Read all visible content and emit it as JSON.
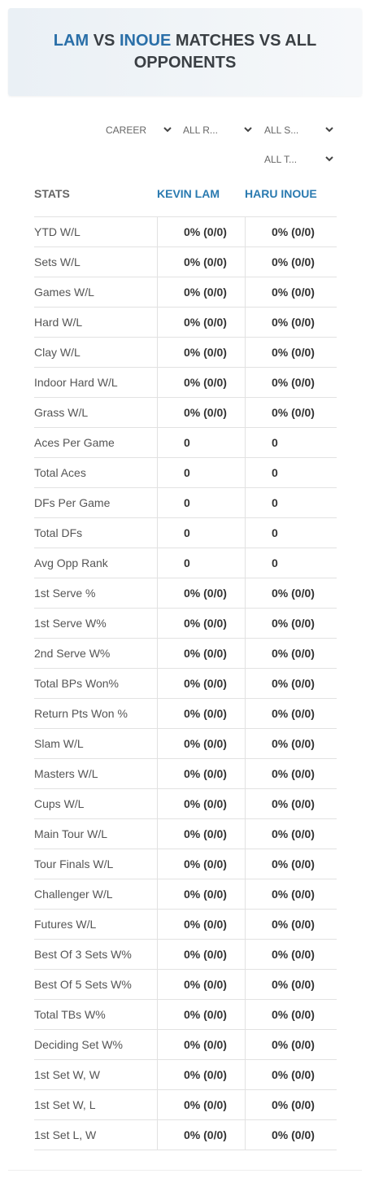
{
  "header": {
    "title": {
      "name1": "LAM",
      "vs": "VS",
      "name2": "INOUE",
      "rest": "MATCHES VS ALL OPPONENTS"
    }
  },
  "filters": [
    "CAREER",
    "ALL R...",
    "ALL S...",
    "ALL T..."
  ],
  "table": {
    "columns": [
      "STATS",
      "KEVIN LAM",
      "HARU INOUE"
    ],
    "rows": [
      [
        "YTD W/L",
        "0% (0/0)",
        "0% (0/0)"
      ],
      [
        "Sets W/L",
        "0% (0/0)",
        "0% (0/0)"
      ],
      [
        "Games W/L",
        "0% (0/0)",
        "0% (0/0)"
      ],
      [
        "Hard W/L",
        "0% (0/0)",
        "0% (0/0)"
      ],
      [
        "Clay W/L",
        "0% (0/0)",
        "0% (0/0)"
      ],
      [
        "Indoor Hard W/L",
        "0% (0/0)",
        "0% (0/0)"
      ],
      [
        "Grass W/L",
        "0% (0/0)",
        "0% (0/0)"
      ],
      [
        "Aces Per Game",
        "0",
        "0"
      ],
      [
        "Total Aces",
        "0",
        "0"
      ],
      [
        "DFs Per Game",
        "0",
        "0"
      ],
      [
        "Total DFs",
        "0",
        "0"
      ],
      [
        "Avg Opp Rank",
        "0",
        "0"
      ],
      [
        "1st Serve %",
        "0% (0/0)",
        "0% (0/0)"
      ],
      [
        "1st Serve W%",
        "0% (0/0)",
        "0% (0/0)"
      ],
      [
        "2nd Serve W%",
        "0% (0/0)",
        "0% (0/0)"
      ],
      [
        "Total BPs Won%",
        "0% (0/0)",
        "0% (0/0)"
      ],
      [
        "Return Pts Won %",
        "0% (0/0)",
        "0% (0/0)"
      ],
      [
        "Slam W/L",
        "0% (0/0)",
        "0% (0/0)"
      ],
      [
        "Masters W/L",
        "0% (0/0)",
        "0% (0/0)"
      ],
      [
        "Cups W/L",
        "0% (0/0)",
        "0% (0/0)"
      ],
      [
        "Main Tour W/L",
        "0% (0/0)",
        "0% (0/0)"
      ],
      [
        "Tour Finals W/L",
        "0% (0/0)",
        "0% (0/0)"
      ],
      [
        "Challenger W/L",
        "0% (0/0)",
        "0% (0/0)"
      ],
      [
        "Futures W/L",
        "0% (0/0)",
        "0% (0/0)"
      ],
      [
        "Best Of 3 Sets W%",
        "0% (0/0)",
        "0% (0/0)"
      ],
      [
        "Best Of 5 Sets W%",
        "0% (0/0)",
        "0% (0/0)"
      ],
      [
        "Total TBs W%",
        "0% (0/0)",
        "0% (0/0)"
      ],
      [
        "Deciding Set W%",
        "0% (0/0)",
        "0% (0/0)"
      ],
      [
        "1st Set W, W",
        "0% (0/0)",
        "0% (0/0)"
      ],
      [
        "1st Set W, L",
        "0% (0/0)",
        "0% (0/0)"
      ],
      [
        "1st Set L, W",
        "0% (0/0)",
        "0% (0/0)"
      ]
    ]
  }
}
